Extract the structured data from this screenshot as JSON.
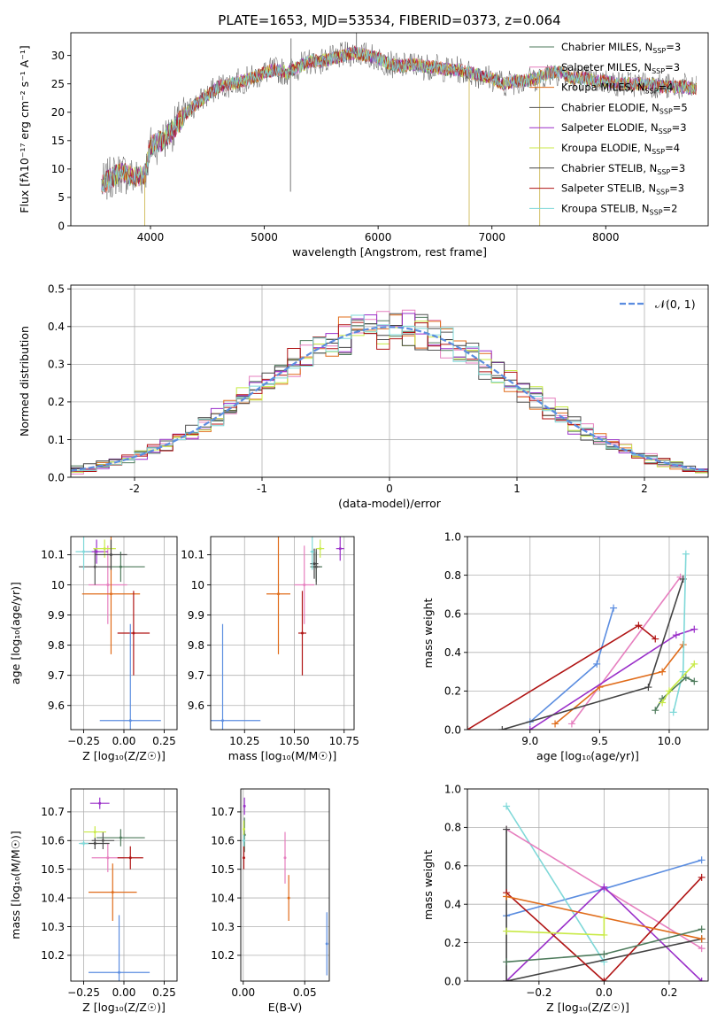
{
  "series_colors": [
    "#4d7a5b",
    "#e67fbf",
    "#e06c1a",
    "#555555",
    "#9a2fc9",
    "#c8ea45",
    "#444444",
    "#b01414",
    "#7fd8d8"
  ],
  "chart_data": [
    {
      "id": "spectrum",
      "type": "line",
      "title": "PLATE=1653, MJD=53534, FIBERID=0373, z=0.064",
      "xlabel": "wavelength [Angstrom, rest frame]",
      "ylabel": "Flux [fλ10⁻¹⁷ erg cm⁻² s⁻¹ A⁻¹]",
      "xlim": [
        3300,
        8900
      ],
      "ylim": [
        0,
        34
      ],
      "xticks": [
        4000,
        5000,
        6000,
        7000,
        8000
      ],
      "yticks": [
        0,
        5,
        10,
        15,
        20,
        25,
        30
      ],
      "legend_position": "upper right",
      "series_names": [
        "Chabrier MILES, N_SSP=3",
        "Salpeter MILES, N_SSP=3",
        "Kroupa MILES, N_SSP=4",
        "Chabrier ELODIE, N_SSP=5",
        "Salpeter ELODIE, N_SSP=3",
        "Kroupa ELODIE, N_SSP=4",
        "Chabrier STELIB, N_SSP=3",
        "Salpeter STELIB, N_SSP=3",
        "Kroupa STELIB, N_SSP=2"
      ],
      "continuum": {
        "x": [
          3570,
          3650,
          3750,
          3850,
          3950,
          4000,
          4100,
          4200,
          4300,
          4400,
          4500,
          4600,
          4700,
          4800,
          4900,
          5000,
          5100,
          5200,
          5300,
          5400,
          5500,
          5600,
          5700,
          5800,
          5900,
          6000,
          6100,
          6200,
          6300,
          6400,
          6500,
          6600,
          6700,
          6800,
          6900,
          7000,
          7100,
          7200,
          7300,
          7400,
          7500,
          7600,
          7700,
          7800,
          7900,
          8000,
          8100,
          8200,
          8300,
          8400,
          8500,
          8600,
          8700,
          8800
        ],
        "y": [
          7,
          8.5,
          9.5,
          8.5,
          9,
          14,
          15,
          17,
          19.5,
          21.5,
          23,
          24.5,
          25,
          25.5,
          26,
          27,
          27.5,
          27,
          28,
          29,
          29,
          29.5,
          30,
          30.5,
          30,
          29.5,
          28.5,
          28,
          28.5,
          28,
          28,
          27.5,
          27.5,
          27,
          26.5,
          26,
          25,
          25.5,
          25.5,
          26,
          27,
          27,
          26,
          26,
          25.5,
          25.5,
          25,
          25,
          25,
          25,
          24.5,
          24.5,
          24.5,
          24
        ]
      },
      "spikes": [
        {
          "x": 5230,
          "y": 6
        },
        {
          "x": 5235,
          "y": 33
        },
        {
          "x": 3950,
          "y": 0
        },
        {
          "x": 5810,
          "y": 34
        },
        {
          "x": 6800,
          "y": 0
        },
        {
          "x": 7420,
          "y": 0
        },
        {
          "x": 4310,
          "y": 19
        }
      ]
    },
    {
      "id": "residuals",
      "type": "bar",
      "xlabel": "(data-model)/error",
      "ylabel": "Normed distribution",
      "xlim": [
        -2.5,
        2.5
      ],
      "ylim": [
        0,
        0.51
      ],
      "xticks": [
        -2,
        -1,
        0,
        1,
        2
      ],
      "yticks": [
        0.0,
        0.1,
        0.2,
        0.3,
        0.4,
        0.5
      ],
      "legend": "𝒩(0, 1)",
      "legend_position": "upper right",
      "bin_width": 0.1
    },
    {
      "id": "age_vs_Z",
      "type": "scatter",
      "xlabel": "Z [log₁₀(Z/Z☉)]",
      "ylabel": "age  [log₁₀(age/yr)]",
      "xlim": [
        -0.33,
        0.33
      ],
      "ylim": [
        9.52,
        10.16
      ],
      "xticks": [
        -0.25,
        0.0,
        0.25
      ],
      "xticklabels": [
        "−0.25",
        "0.00",
        "0.25"
      ],
      "yticks": [
        9.6,
        9.7,
        9.8,
        9.9,
        10.0,
        10.1
      ],
      "points": [
        {
          "c": 0,
          "x": -0.02,
          "y": 10.06,
          "xe": 0.15,
          "ye": 0.05
        },
        {
          "c": 1,
          "x": -0.1,
          "y": 10.0,
          "xe": 0.12,
          "ye": 0.13
        },
        {
          "c": 2,
          "x": -0.08,
          "y": 9.97,
          "xe": 0.18,
          "ye": 0.2
        },
        {
          "c": 3,
          "x": -0.18,
          "y": 10.06,
          "xe": 0.1,
          "ye": 0.06
        },
        {
          "c": 4,
          "x": -0.17,
          "y": 10.11,
          "xe": 0.07,
          "ye": 0.04
        },
        {
          "c": 5,
          "x": -0.12,
          "y": 10.12,
          "xe": 0.07,
          "ye": 0.03
        },
        {
          "c": 6,
          "x": -0.08,
          "y": 10.1,
          "xe": 0.1,
          "ye": 0.05
        },
        {
          "c": 7,
          "x": 0.06,
          "y": 9.84,
          "xe": 0.1,
          "ye": 0.14
        },
        {
          "c": 8,
          "x": -0.25,
          "y": 10.11,
          "xe": 0.05,
          "ye": 0.06
        },
        {
          "c": 9,
          "x": 0.04,
          "y": 9.55,
          "xe": 0.19,
          "ye": 0.32
        }
      ]
    },
    {
      "id": "age_vs_mass",
      "type": "scatter",
      "xlabel": "mass [log₁₀(M/M☉)]",
      "xlim": [
        10.08,
        10.8
      ],
      "ylim": [
        9.52,
        10.16
      ],
      "xticks": [
        10.25,
        10.5,
        10.75
      ],
      "xticklabels": [
        "10.25",
        "10.50",
        "10.75"
      ],
      "yticks": [
        9.6,
        9.7,
        9.8,
        9.9,
        10.0,
        10.1
      ],
      "points": [
        {
          "c": 0,
          "x": 10.61,
          "y": 10.06,
          "xe": 0.03,
          "ye": 0.05
        },
        {
          "c": 1,
          "x": 10.55,
          "y": 10.0,
          "xe": 0.05,
          "ye": 0.13
        },
        {
          "c": 2,
          "x": 10.42,
          "y": 9.97,
          "xe": 0.06,
          "ye": 0.2
        },
        {
          "c": 3,
          "x": 10.61,
          "y": 10.06,
          "xe": 0.02,
          "ye": 0.06
        },
        {
          "c": 4,
          "x": 10.73,
          "y": 10.12,
          "xe": 0.02,
          "ye": 0.04
        },
        {
          "c": 5,
          "x": 10.63,
          "y": 10.12,
          "xe": 0.02,
          "ye": 0.03
        },
        {
          "c": 6,
          "x": 10.6,
          "y": 10.07,
          "xe": 0.02,
          "ye": 0.05
        },
        {
          "c": 7,
          "x": 10.54,
          "y": 9.84,
          "xe": 0.02,
          "ye": 0.14
        },
        {
          "c": 8,
          "x": 10.59,
          "y": 10.11,
          "xe": 0.01,
          "ye": 0.06
        },
        {
          "c": 9,
          "x": 10.14,
          "y": 9.55,
          "xe": 0.19,
          "ye": 0.32
        }
      ]
    },
    {
      "id": "massweight_vs_age",
      "type": "line",
      "xlabel": "age  [log₁₀(age/yr)]",
      "ylabel": "mass weight",
      "xlim": [
        8.55,
        10.28
      ],
      "ylim": [
        0,
        1
      ],
      "xticks": [
        9.0,
        9.5,
        10.0
      ],
      "xticklabels": [
        "9.0",
        "9.5",
        "10.0"
      ],
      "yticks": [
        0,
        0.2,
        0.4,
        0.6,
        0.8,
        1.0
      ],
      "yticklabels": [
        "0.0",
        "0.2",
        "0.4",
        "0.6",
        "0.8",
        "1.0"
      ],
      "series": [
        {
          "c": 9,
          "x": [
            9.0,
            9.48,
            9.6
          ],
          "y": [
            0.04,
            0.34,
            0.63
          ]
        },
        {
          "c": 1,
          "x": [
            9.3,
            10.08
          ],
          "y": [
            0.03,
            0.79
          ]
        },
        {
          "c": 2,
          "x": [
            9.18,
            9.5,
            9.95,
            10.1
          ],
          "y": [
            0.03,
            0.22,
            0.3,
            0.44
          ]
        },
        {
          "c": 4,
          "x": [
            9.0,
            10.05,
            10.18
          ],
          "y": [
            0.0,
            0.49,
            0.52
          ]
        },
        {
          "c": 6,
          "x": [
            8.8,
            9.85,
            10.1
          ],
          "y": [
            0.0,
            0.22,
            0.78
          ]
        },
        {
          "c": 7,
          "x": [
            8.55,
            9.78,
            9.9
          ],
          "y": [
            0.0,
            0.54,
            0.47
          ]
        },
        {
          "c": 8,
          "x": [
            10.03,
            10.1,
            10.12
          ],
          "y": [
            0.09,
            0.3,
            0.91
          ]
        },
        {
          "c": 0,
          "x": [
            9.9,
            9.95,
            10.12,
            10.18
          ],
          "y": [
            0.1,
            0.16,
            0.27,
            0.25
          ]
        },
        {
          "c": 5,
          "x": [
            9.95,
            10.0,
            10.18
          ],
          "y": [
            0.14,
            0.2,
            0.34
          ]
        }
      ]
    },
    {
      "id": "mass_vs_Z",
      "type": "scatter",
      "xlabel": "Z [log₁₀(Z/Z☉)]",
      "ylabel": "mass [log₁₀(M/M☉)]",
      "xlim": [
        -0.33,
        0.33
      ],
      "ylim": [
        10.11,
        10.78
      ],
      "xticks": [
        -0.25,
        0.0,
        0.25
      ],
      "xticklabels": [
        "−0.25",
        "0.00",
        "0.25"
      ],
      "yticks": [
        10.2,
        10.3,
        10.4,
        10.5,
        10.6,
        10.7
      ],
      "points": [
        {
          "c": 0,
          "x": -0.02,
          "y": 10.61,
          "xe": 0.15,
          "ye": 0.03
        },
        {
          "c": 1,
          "x": -0.1,
          "y": 10.54,
          "xe": 0.1,
          "ye": 0.05
        },
        {
          "c": 2,
          "x": -0.07,
          "y": 10.42,
          "xe": 0.15,
          "ye": 0.1
        },
        {
          "c": 3,
          "x": -0.13,
          "y": 10.6,
          "xe": 0.07,
          "ye": 0.03
        },
        {
          "c": 4,
          "x": -0.15,
          "y": 10.73,
          "xe": 0.06,
          "ye": 0.02
        },
        {
          "c": 5,
          "x": -0.18,
          "y": 10.63,
          "xe": 0.07,
          "ye": 0.02
        },
        {
          "c": 6,
          "x": -0.18,
          "y": 10.59,
          "xe": 0.09,
          "ye": 0.02
        },
        {
          "c": 7,
          "x": 0.04,
          "y": 10.54,
          "xe": 0.08,
          "ye": 0.04
        },
        {
          "c": 8,
          "x": -0.25,
          "y": 10.59,
          "xe": 0.03,
          "ye": 0.01
        },
        {
          "c": 9,
          "x": -0.03,
          "y": 10.14,
          "xe": 0.19,
          "ye": 0.2
        }
      ]
    },
    {
      "id": "mass_vs_ebv",
      "type": "scatter",
      "xlabel": "E(B-V)",
      "xlim": [
        -0.002,
        0.07
      ],
      "ylim": [
        10.11,
        10.78
      ],
      "xticks": [
        0.0,
        0.05
      ],
      "xticklabels": [
        "0.00",
        "0.05"
      ],
      "yticks": [
        10.2,
        10.3,
        10.4,
        10.5,
        10.6,
        10.7
      ],
      "points": [
        {
          "c": 1,
          "x": 0.034,
          "y": 10.54,
          "ye": 0.09
        },
        {
          "c": 2,
          "x": 0.037,
          "y": 10.4,
          "ye": 0.08
        },
        {
          "c": 0,
          "x": 0.001,
          "y": 10.62,
          "ye": 0.06
        },
        {
          "c": 4,
          "x": 0.001,
          "y": 10.72,
          "ye": 0.03
        },
        {
          "c": 5,
          "x": 0.0005,
          "y": 10.64,
          "ye": 0.03
        },
        {
          "c": 7,
          "x": 0.0005,
          "y": 10.54,
          "ye": 0.04
        },
        {
          "c": 8,
          "x": 0.0005,
          "y": 10.6,
          "ye": 0.02
        },
        {
          "c": 9,
          "x": 0.068,
          "y": 10.24,
          "ye": 0.11
        }
      ]
    },
    {
      "id": "massweight_vs_Z",
      "type": "line",
      "xlabel": "Z [log₁₀(Z/Z☉)]",
      "ylabel": "mass weight",
      "xlim": [
        -0.42,
        0.32
      ],
      "ylim": [
        0,
        1
      ],
      "xticks": [
        -0.2,
        0.0,
        0.2
      ],
      "xticklabels": [
        "−0.2",
        "0.0",
        "0.2"
      ],
      "yticks": [
        0,
        0.2,
        0.4,
        0.6,
        0.8,
        1.0
      ],
      "yticklabels": [
        "0.0",
        "0.2",
        "0.4",
        "0.6",
        "0.8",
        "1.0"
      ],
      "series": [
        {
          "c": 9,
          "x": [
            -0.3,
            0.0,
            0.3
          ],
          "y": [
            0.34,
            0.48,
            0.63
          ]
        },
        {
          "c": 8,
          "x": [
            -0.3,
            0.0
          ],
          "y": [
            0.91,
            0.1
          ]
        },
        {
          "c": 1,
          "x": [
            -0.3,
            0.3
          ],
          "y": [
            0.79,
            0.17
          ]
        },
        {
          "c": 4,
          "x": [
            -0.3,
            0.0,
            0.3
          ],
          "y": [
            0.0,
            0.49,
            0.0
          ]
        },
        {
          "c": 6,
          "x": [
            -0.3,
            -0.3,
            0.3
          ],
          "y": [
            0.79,
            0.0,
            0.22
          ]
        },
        {
          "c": 7,
          "x": [
            -0.3,
            0.0,
            0.3
          ],
          "y": [
            0.46,
            0.0,
            0.54
          ]
        },
        {
          "c": 2,
          "x": [
            -0.3,
            0.3
          ],
          "y": [
            0.44,
            0.22
          ]
        },
        {
          "c": 5,
          "x": [
            -0.3,
            0.0,
            0.0
          ],
          "y": [
            0.26,
            0.24,
            0.33
          ]
        },
        {
          "c": 0,
          "x": [
            -0.3,
            0.0,
            0.3
          ],
          "y": [
            0.1,
            0.14,
            0.27
          ]
        }
      ]
    }
  ]
}
